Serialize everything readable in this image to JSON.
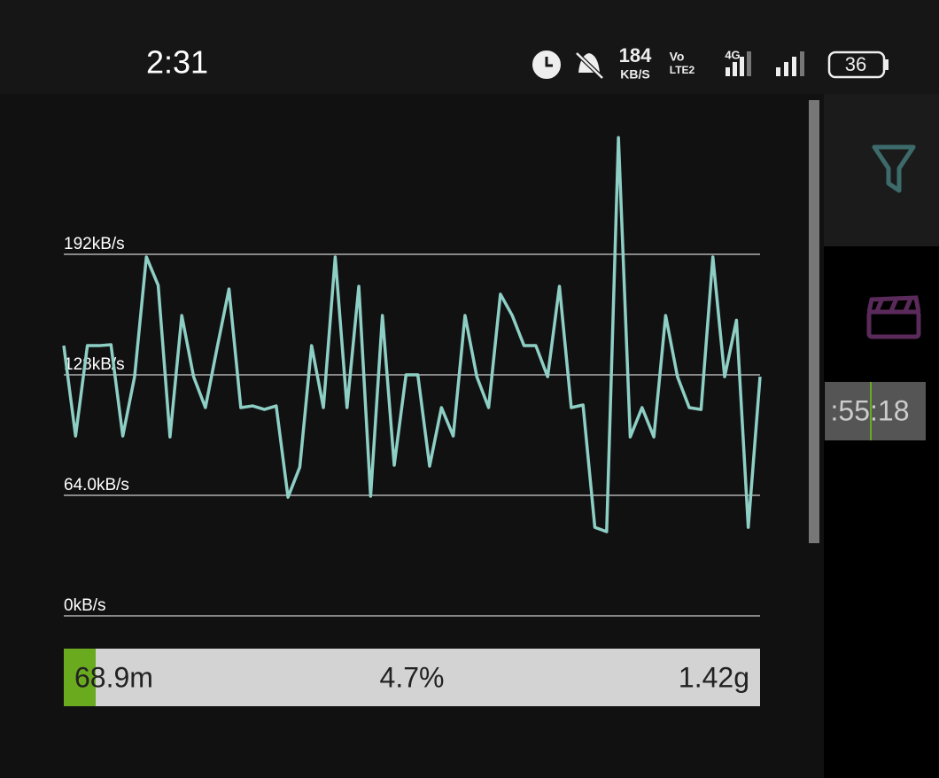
{
  "status_bar": {
    "time": "2:31",
    "speed_value": "184",
    "speed_unit": "KB/S",
    "volte_top": "Vo",
    "volte_bottom": "LTE2",
    "network": "4G",
    "battery": "36"
  },
  "chart_data": {
    "type": "line",
    "color": "#8ecfc5",
    "grid": true,
    "ylim": [
      0,
      256
    ],
    "yticks": [
      {
        "value": 0,
        "label": "0kB/s"
      },
      {
        "value": 64,
        "label": "64.0kB/s"
      },
      {
        "value": 128,
        "label": "128kB/s"
      },
      {
        "value": 192,
        "label": "192kB/s"
      }
    ],
    "values": [
      143.5,
      95.5,
      143.5,
      143.5,
      144,
      95.5,
      127,
      190.6,
      175.5,
      95,
      159.5,
      127,
      110.6,
      142.6,
      173.6,
      110.6,
      111.5,
      109.6,
      111.5,
      63,
      79,
      143.5,
      110.6,
      190.6,
      110.6,
      175,
      63.5,
      159.5,
      80,
      128,
      128,
      79.5,
      110.6,
      95.5,
      159.5,
      127,
      110.6,
      170.8,
      159.5,
      143.5,
      143.5,
      127,
      175,
      110.6,
      112,
      47,
      44.7,
      254,
      95,
      110.6,
      95,
      159.5,
      127,
      110.6,
      109.6,
      190.6,
      127,
      157,
      47,
      127
    ]
  },
  "usage_bar": {
    "left": "68.9m",
    "middle": "4.7%",
    "right": "1.42g"
  },
  "side_panel": {
    "timer": ":55:18"
  }
}
